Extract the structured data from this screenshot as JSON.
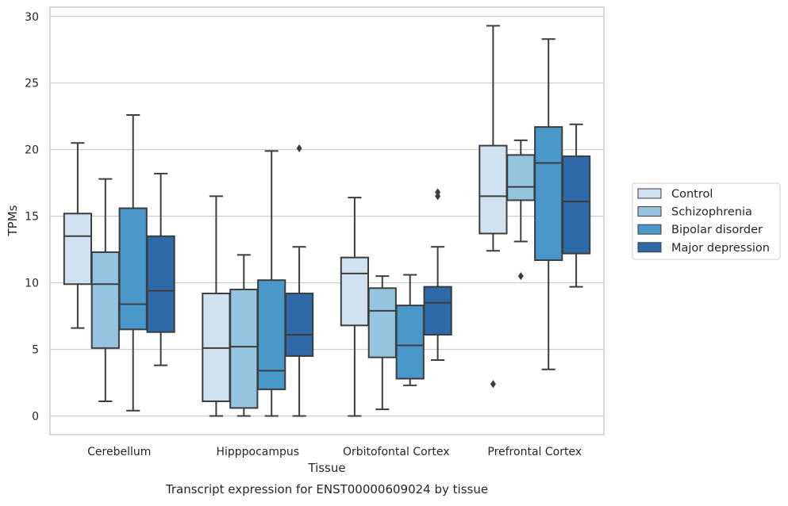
{
  "caption": "Transcript expression for ENST00000609024 by tissue",
  "chart_data": {
    "type": "boxplot",
    "xlabel": "Tissue",
    "ylabel": "TPMs",
    "ylim": [
      -1.4,
      30.7
    ],
    "yticks": [
      0,
      5,
      10,
      15,
      20,
      25,
      30
    ],
    "grid": "horizontal",
    "legend_placement": "right",
    "categories": [
      "Cerebellum",
      "Hipppocampus",
      "Orbitofontal Cortex",
      "Prefrontal Cortex"
    ],
    "series": [
      {
        "name": "Control",
        "color": "#d0e1f2",
        "boxes": [
          {
            "min": 6.6,
            "q1": 9.9,
            "median": 13.5,
            "q3": 15.2,
            "max": 20.5,
            "outliers": []
          },
          {
            "min": 0.0,
            "q1": 1.1,
            "median": 5.1,
            "q3": 9.2,
            "max": 16.5,
            "outliers": []
          },
          {
            "min": 0.0,
            "q1": 6.8,
            "median": 10.7,
            "q3": 11.9,
            "max": 16.4,
            "outliers": []
          },
          {
            "min": 12.4,
            "q1": 13.7,
            "median": 16.5,
            "q3": 20.3,
            "max": 29.3,
            "outliers": [
              2.4
            ]
          }
        ]
      },
      {
        "name": "Schizophrenia",
        "color": "#94c4df",
        "boxes": [
          {
            "min": 1.1,
            "q1": 5.1,
            "median": 9.9,
            "q3": 12.3,
            "max": 17.8,
            "outliers": []
          },
          {
            "min": 0.0,
            "q1": 0.6,
            "median": 5.2,
            "q3": 9.5,
            "max": 12.1,
            "outliers": []
          },
          {
            "min": 0.5,
            "q1": 4.4,
            "median": 7.9,
            "q3": 9.6,
            "max": 10.5,
            "outliers": []
          },
          {
            "min": 13.1,
            "q1": 16.2,
            "median": 17.2,
            "q3": 19.6,
            "max": 20.7,
            "outliers": [
              10.5
            ]
          }
        ]
      },
      {
        "name": "Bipolar disorder",
        "color": "#4a98c9",
        "boxes": [
          {
            "min": 0.4,
            "q1": 6.5,
            "median": 8.4,
            "q3": 15.6,
            "max": 22.6,
            "outliers": []
          },
          {
            "min": 0.0,
            "q1": 2.0,
            "median": 3.4,
            "q3": 10.2,
            "max": 19.9,
            "outliers": []
          },
          {
            "min": 2.3,
            "q1": 2.8,
            "median": 5.3,
            "q3": 8.3,
            "max": 10.6,
            "outliers": []
          },
          {
            "min": 3.5,
            "q1": 11.7,
            "median": 19.0,
            "q3": 21.7,
            "max": 28.3,
            "outliers": []
          }
        ]
      },
      {
        "name": "Major depression",
        "color": "#2e6aa8",
        "boxes": [
          {
            "min": 3.8,
            "q1": 6.3,
            "median": 9.4,
            "q3": 13.5,
            "max": 18.2,
            "outliers": []
          },
          {
            "min": 0.0,
            "q1": 4.5,
            "median": 6.1,
            "q3": 9.2,
            "max": 12.7,
            "outliers": [
              20.1
            ]
          },
          {
            "min": 4.2,
            "q1": 6.1,
            "median": 8.5,
            "q3": 9.7,
            "max": 12.7,
            "outliers": [
              16.5,
              16.8
            ]
          },
          {
            "min": 9.7,
            "q1": 12.2,
            "median": 16.1,
            "q3": 19.5,
            "max": 21.9,
            "outliers": []
          }
        ]
      }
    ]
  }
}
